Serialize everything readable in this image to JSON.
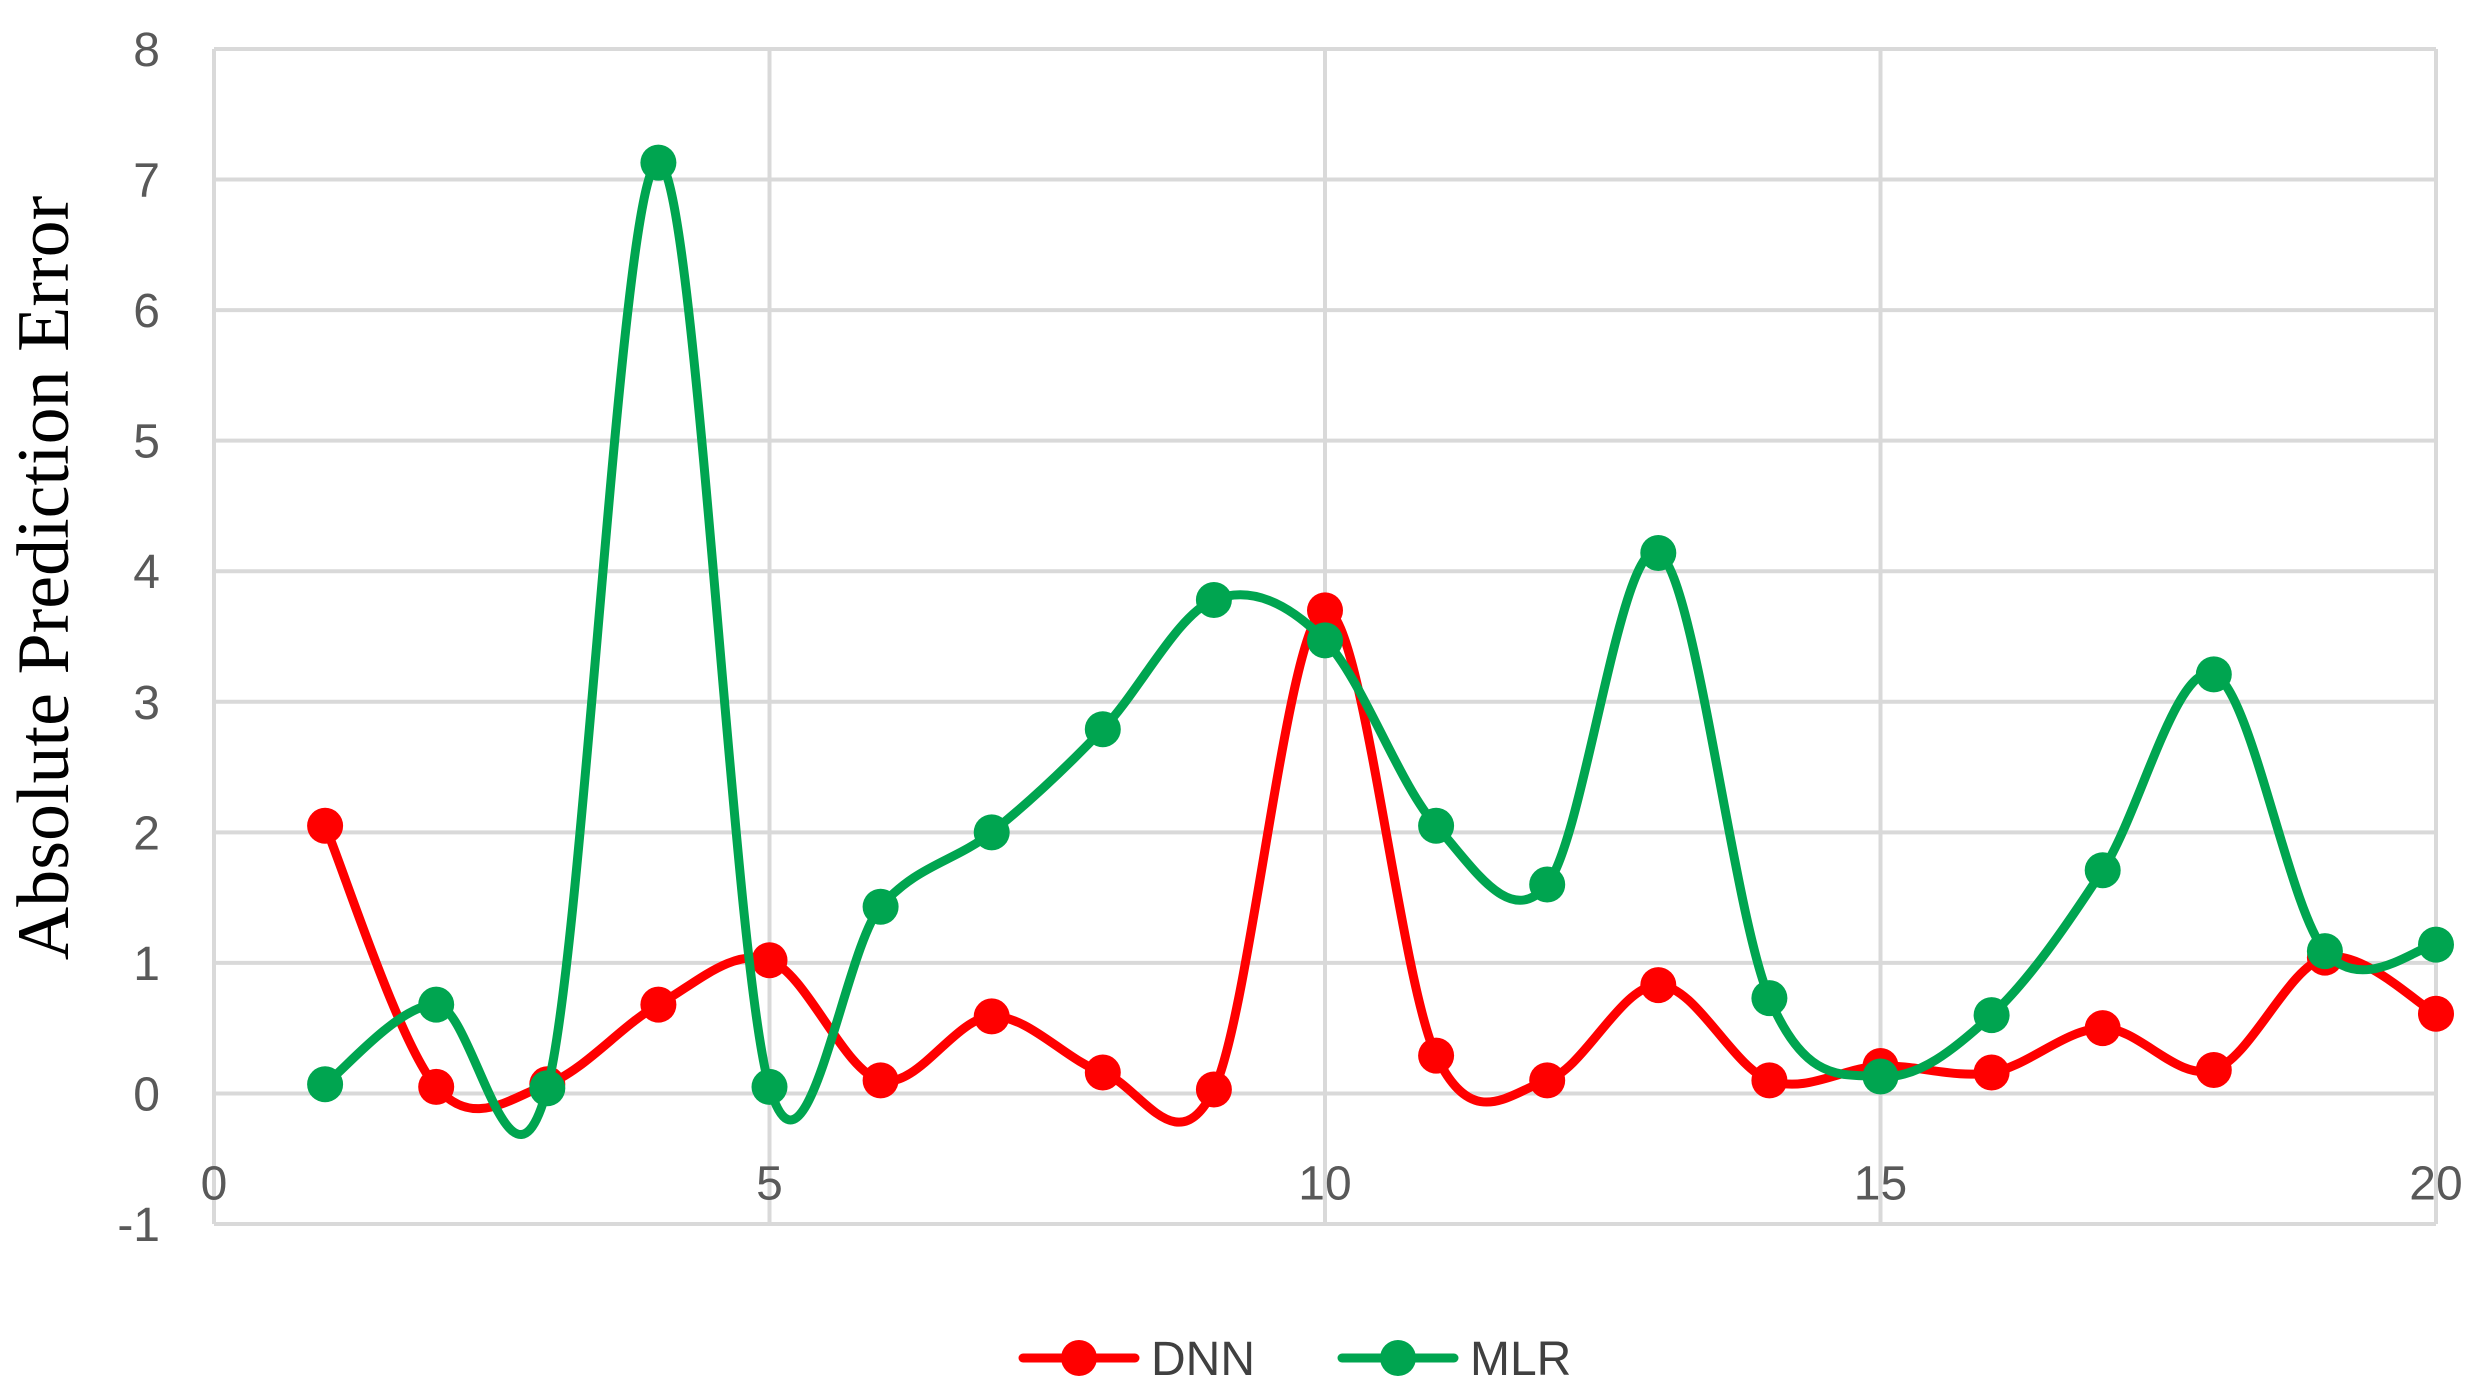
{
  "chart_data": {
    "type": "scatter",
    "title": "",
    "xlabel": "",
    "ylabel": "Absolute Prediction Error",
    "xlim": [
      0,
      20
    ],
    "ylim": [
      -1,
      8
    ],
    "x_ticks": [
      0,
      5,
      10,
      15,
      20
    ],
    "y_ticks": [
      -1,
      0,
      1,
      2,
      3,
      4,
      5,
      6,
      7,
      8
    ],
    "grid": true,
    "smooth_lines": true,
    "legend_position": "bottom",
    "series": [
      {
        "name": "DNN",
        "color": "#ff0000",
        "x": [
          1,
          2,
          3,
          4,
          5,
          6,
          7,
          8,
          9,
          10,
          11,
          12,
          13,
          14,
          15,
          16,
          17,
          18,
          19,
          20
        ],
        "y": [
          2.05,
          0.05,
          0.07,
          0.68,
          1.02,
          0.1,
          0.59,
          0.16,
          0.03,
          3.7,
          0.29,
          0.1,
          0.83,
          0.1,
          0.21,
          0.16,
          0.5,
          0.18,
          1.04,
          0.61
        ]
      },
      {
        "name": "MLR",
        "color": "#00a550",
        "x": [
          1,
          2,
          3,
          4,
          5,
          6,
          7,
          8,
          9,
          10,
          11,
          12,
          13,
          14,
          15,
          16,
          17,
          18,
          19,
          20
        ],
        "y": [
          0.07,
          0.68,
          0.04,
          7.13,
          0.05,
          1.43,
          2.0,
          2.79,
          3.78,
          3.47,
          2.05,
          1.6,
          4.14,
          0.73,
          0.13,
          0.6,
          1.71,
          3.21,
          1.09,
          1.14
        ]
      }
    ]
  }
}
